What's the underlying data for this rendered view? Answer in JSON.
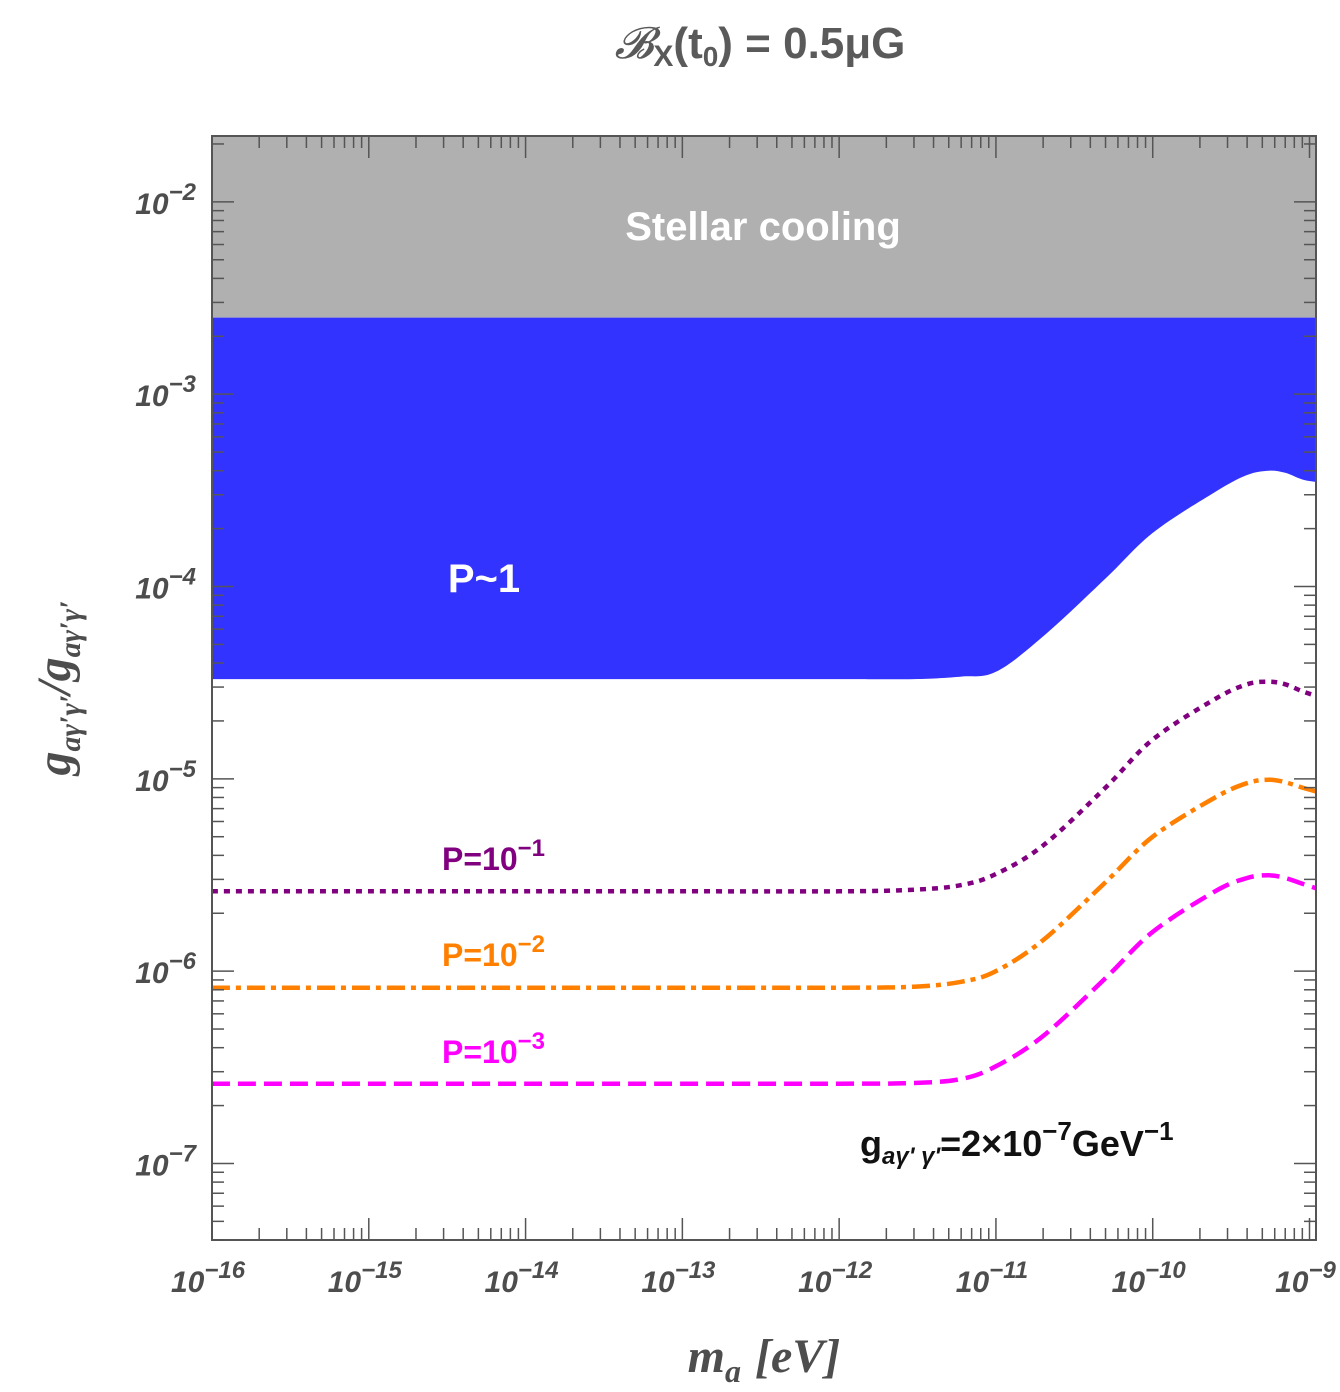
{
  "chart_data": {
    "type": "line",
    "title_main": "0.5μG",
    "title_prefix": "𝓑",
    "title_sub_x": "X",
    "title_arg": "t",
    "title_arg_sub": "0",
    "xlabel": "m",
    "xlabel_sub": "a",
    "xlabel_unit": "[eV]",
    "ylabel": "g",
    "ylabel_sub": "aγ′γ′",
    "xscale": "log",
    "yscale": "log",
    "xlim": [
      1e-16,
      1.1e-09
    ],
    "ylim": [
      4e-08,
      0.022
    ],
    "x_ticks": [
      {
        "base": "10",
        "exp": "−16"
      },
      {
        "base": "10",
        "exp": "−15"
      },
      {
        "base": "10",
        "exp": "−14"
      },
      {
        "base": "10",
        "exp": "−13"
      },
      {
        "base": "10",
        "exp": "−12"
      },
      {
        "base": "10",
        "exp": "−11"
      },
      {
        "base": "10",
        "exp": "−10"
      },
      {
        "base": "10",
        "exp": "−9"
      }
    ],
    "y_ticks": [
      {
        "base": "10",
        "exp": "−7"
      },
      {
        "base": "10",
        "exp": "−6"
      },
      {
        "base": "10",
        "exp": "−5"
      },
      {
        "base": "10",
        "exp": "−4"
      },
      {
        "base": "10",
        "exp": "−3"
      },
      {
        "base": "10",
        "exp": "−2"
      }
    ],
    "regions": [
      {
        "name": "Stellar cooling",
        "color": "#b0b0b0",
        "y_lower": 0.0025
      },
      {
        "name": "P~1",
        "color": "#3333ff",
        "x": [
          1e-16,
          1e-13,
          1e-12,
          3e-12,
          6e-12,
          1e-11,
          2e-11,
          5e-11,
          1e-10,
          2.5e-10,
          4e-10,
          5.5e-10,
          7e-10,
          9e-10,
          1.1e-09
        ],
        "y": [
          3.3e-05,
          3.3e-05,
          3.3e-05,
          3.3e-05,
          3.4e-05,
          3.6e-05,
          5.5e-05,
          0.00011,
          0.00019,
          0.00031,
          0.00038,
          0.0004,
          0.00039,
          0.00036,
          0.00035
        ]
      }
    ],
    "series": [
      {
        "name": "P=10",
        "exp": "−1",
        "color": "#800080",
        "dash": "dotted",
        "x": [
          1e-16,
          1e-13,
          1e-12,
          3e-12,
          6e-12,
          1e-11,
          2e-11,
          5e-11,
          1e-10,
          2.5e-10,
          4e-10,
          5.5e-10,
          7e-10,
          9e-10,
          1.1e-09
        ],
        "y": [
          2.6e-06,
          2.6e-06,
          2.6e-06,
          2.65e-06,
          2.8e-06,
          3.2e-06,
          4.5e-06,
          9e-06,
          1.6e-05,
          2.6e-05,
          3.1e-05,
          3.2e-05,
          3.1e-05,
          2.85e-05,
          2.7e-05
        ]
      },
      {
        "name": "P=10",
        "exp": "−2",
        "color": "#ff8000",
        "dash": "dashdot",
        "x": [
          1e-16,
          1e-13,
          1e-12,
          3e-12,
          6e-12,
          1e-11,
          2e-11,
          5e-11,
          1e-10,
          2.5e-10,
          4e-10,
          5.5e-10,
          7e-10,
          9e-10,
          1.1e-09
        ],
        "y": [
          8.2e-07,
          8.2e-07,
          8.2e-07,
          8.3e-07,
          8.8e-07,
          1e-06,
          1.45e-06,
          2.9e-06,
          5e-06,
          8e-06,
          9.5e-06,
          9.9e-06,
          9.6e-06,
          9e-06,
          8.6e-06
        ]
      },
      {
        "name": "P=10",
        "exp": "−3",
        "color": "#ff00ff",
        "dash": "dashed",
        "x": [
          1e-16,
          1e-13,
          1e-12,
          3e-12,
          6e-12,
          1e-11,
          2e-11,
          5e-11,
          1e-10,
          2.5e-10,
          4e-10,
          5.5e-10,
          7e-10,
          9e-10,
          1.1e-09
        ],
        "y": [
          2.6e-07,
          2.6e-07,
          2.6e-07,
          2.62e-07,
          2.75e-07,
          3.2e-07,
          4.6e-07,
          9.2e-07,
          1.6e-06,
          2.6e-06,
          3.05e-06,
          3.15e-06,
          3.05e-06,
          2.85e-06,
          2.7e-06
        ]
      }
    ],
    "annotation": {
      "text_g": "g",
      "text_sub": "aγ' γ'",
      "text_val": "=2×10",
      "text_exp": "−7",
      "text_unit": "GeV",
      "text_unit_exp": "−1"
    }
  }
}
